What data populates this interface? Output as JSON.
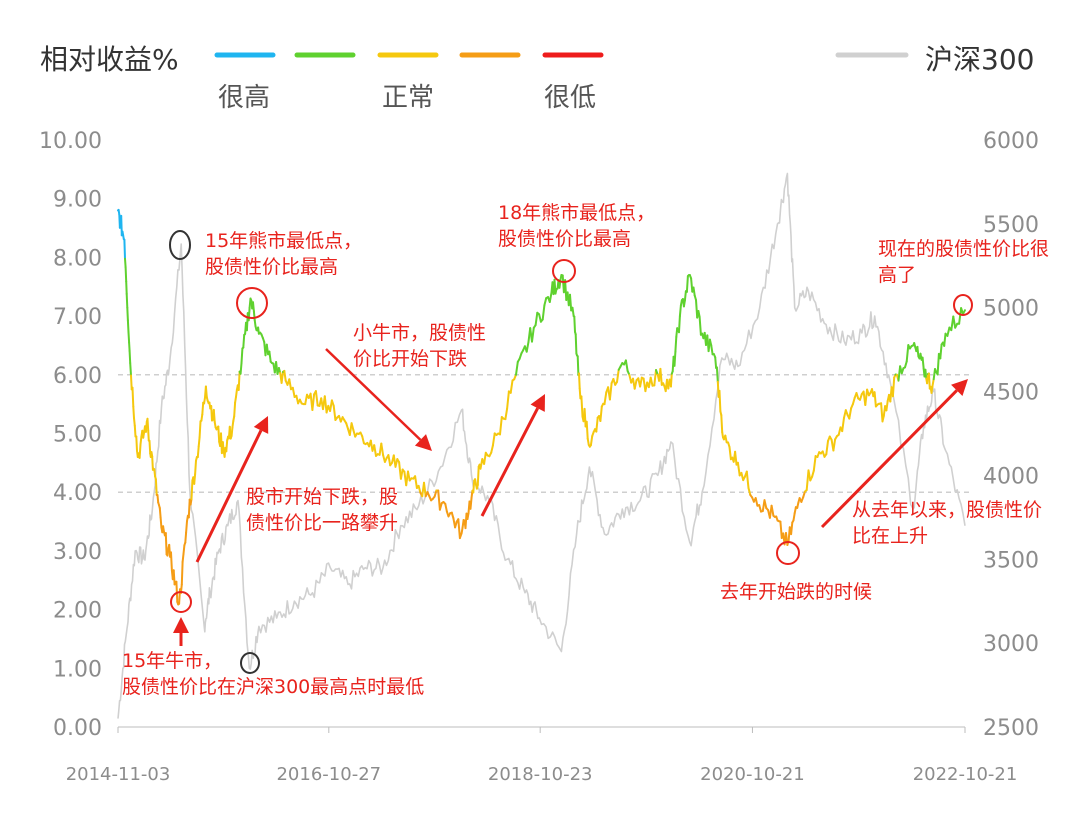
{
  "chart_data": {
    "type": "line",
    "legend": {
      "left_title": "相对收益%",
      "bands": [
        {
          "name": "很高",
          "color": "#1fb5f0"
        },
        {
          "name": "",
          "color": "#5fd12f"
        },
        {
          "name": "正常",
          "color": "#f5c80f"
        },
        {
          "name": "",
          "color": "#f59d16"
        },
        {
          "name": "很低",
          "color": "#ee1c1c"
        }
      ],
      "right_series": {
        "name": "沪深300",
        "color": "#d0d0d0"
      }
    },
    "y_left": {
      "range": [
        0,
        10
      ],
      "ticks": [
        "0.00",
        "1.00",
        "2.00",
        "3.00",
        "4.00",
        "5.00",
        "6.00",
        "7.00",
        "8.00",
        "9.00",
        "10.00"
      ]
    },
    "y_right": {
      "range": [
        2500,
        6000
      ],
      "ticks": [
        "2500",
        "3000",
        "3500",
        "4000",
        "4500",
        "5000",
        "5500",
        "6000"
      ]
    },
    "x_ticks": [
      "2014-11-03",
      "2016-10-27",
      "2018-10-23",
      "2020-10-21",
      "2022-10-21"
    ],
    "x_range": [
      "2014-11-03",
      "2022-10-21"
    ],
    "reference_lines": [
      4.0,
      6.0
    ],
    "relative_return": [
      [
        "2014-11-03",
        8.8
      ],
      [
        "2014-11-25",
        8.3
      ],
      [
        "2014-12-15",
        6.2
      ],
      [
        "2015-01-10",
        4.6
      ],
      [
        "2015-02-10",
        5.2
      ],
      [
        "2015-03-05",
        4.4
      ],
      [
        "2015-04-01",
        3.4
      ],
      [
        "2015-05-01",
        2.9
      ],
      [
        "2015-06-01",
        2.1
      ],
      [
        "2015-07-01",
        3.6
      ],
      [
        "2015-08-01",
        4.6
      ],
      [
        "2015-09-01",
        5.8
      ],
      [
        "2015-10-01",
        5.2
      ],
      [
        "2015-11-01",
        4.7
      ],
      [
        "2015-12-01",
        5.1
      ],
      [
        "2016-01-01",
        6.2
      ],
      [
        "2016-02-01",
        7.3
      ],
      [
        "2016-03-01",
        6.7
      ],
      [
        "2016-04-15",
        6.2
      ],
      [
        "2016-06-01",
        5.9
      ],
      [
        "2016-08-01",
        5.5
      ],
      [
        "2016-10-01",
        5.6
      ],
      [
        "2016-12-01",
        5.3
      ],
      [
        "2017-02-01",
        5.0
      ],
      [
        "2017-04-01",
        4.8
      ],
      [
        "2017-06-01",
        4.5
      ],
      [
        "2017-08-01",
        4.2
      ],
      [
        "2017-10-01",
        4.0
      ],
      [
        "2017-12-01",
        3.8
      ],
      [
        "2018-01-26",
        3.3
      ],
      [
        "2018-03-01",
        3.9
      ],
      [
        "2018-04-01",
        4.4
      ],
      [
        "2018-06-01",
        5.0
      ],
      [
        "2018-08-01",
        6.0
      ],
      [
        "2018-10-01",
        6.8
      ],
      [
        "2018-12-01",
        7.4
      ],
      [
        "2019-01-04",
        7.7
      ],
      [
        "2019-02-15",
        7.0
      ],
      [
        "2019-03-10",
        5.6
      ],
      [
        "2019-04-15",
        4.8
      ],
      [
        "2019-06-01",
        5.5
      ],
      [
        "2019-08-01",
        6.2
      ],
      [
        "2019-10-01",
        5.8
      ],
      [
        "2019-12-01",
        6.0
      ],
      [
        "2020-01-15",
        5.8
      ],
      [
        "2020-02-15",
        7.0
      ],
      [
        "2020-03-20",
        7.7
      ],
      [
        "2020-05-01",
        6.7
      ],
      [
        "2020-06-15",
        6.3
      ],
      [
        "2020-07-15",
        4.9
      ],
      [
        "2020-09-01",
        4.5
      ],
      [
        "2020-11-01",
        3.9
      ],
      [
        "2021-01-01",
        3.6
      ],
      [
        "2021-02-18",
        3.1
      ],
      [
        "2021-04-01",
        3.9
      ],
      [
        "2021-06-01",
        4.6
      ],
      [
        "2021-08-01",
        4.9
      ],
      [
        "2021-10-01",
        5.5
      ],
      [
        "2021-12-01",
        5.7
      ],
      [
        "2022-01-15",
        5.3
      ],
      [
        "2022-03-01",
        6.0
      ],
      [
        "2022-04-26",
        6.5
      ],
      [
        "2022-06-01",
        6.1
      ],
      [
        "2022-07-01",
        5.8
      ],
      [
        "2022-08-15",
        6.7
      ],
      [
        "2022-10-21",
        7.1
      ]
    ],
    "csi300": [
      [
        "2014-11-03",
        2550
      ],
      [
        "2014-12-01",
        3050
      ],
      [
        "2015-01-01",
        3550
      ],
      [
        "2015-02-01",
        3500
      ],
      [
        "2015-03-01",
        3800
      ],
      [
        "2015-04-01",
        4400
      ],
      [
        "2015-05-01",
        4700
      ],
      [
        "2015-06-08",
        5380
      ],
      [
        "2015-07-08",
        3900
      ],
      [
        "2015-08-26",
        3100
      ],
      [
        "2015-09-15",
        3300
      ],
      [
        "2015-10-15",
        3550
      ],
      [
        "2015-11-15",
        3700
      ],
      [
        "2015-12-20",
        3850
      ],
      [
        "2016-01-28",
        2850
      ],
      [
        "2016-03-01",
        3100
      ],
      [
        "2016-05-01",
        3150
      ],
      [
        "2016-07-01",
        3250
      ],
      [
        "2016-09-01",
        3300
      ],
      [
        "2016-11-01",
        3450
      ],
      [
        "2017-01-01",
        3350
      ],
      [
        "2017-03-01",
        3450
      ],
      [
        "2017-05-01",
        3450
      ],
      [
        "2017-07-01",
        3700
      ],
      [
        "2017-09-01",
        3820
      ],
      [
        "2017-11-15",
        4050
      ],
      [
        "2018-01-26",
        4390
      ],
      [
        "2018-03-01",
        4000
      ],
      [
        "2018-05-01",
        3850
      ],
      [
        "2018-07-01",
        3500
      ],
      [
        "2018-09-01",
        3300
      ],
      [
        "2018-10-20",
        3150
      ],
      [
        "2019-01-04",
        2950
      ],
      [
        "2019-02-25",
        3650
      ],
      [
        "2019-04-10",
        4050
      ],
      [
        "2019-06-01",
        3650
      ],
      [
        "2019-08-01",
        3800
      ],
      [
        "2019-10-01",
        3850
      ],
      [
        "2019-12-01",
        4000
      ],
      [
        "2020-01-15",
        4200
      ],
      [
        "2020-03-20",
        3600
      ],
      [
        "2020-05-01",
        3900
      ],
      [
        "2020-07-08",
        4700
      ],
      [
        "2020-09-01",
        4650
      ],
      [
        "2020-11-15",
        5000
      ],
      [
        "2021-01-15",
        5500
      ],
      [
        "2021-02-18",
        5800
      ],
      [
        "2021-03-15",
        5000
      ],
      [
        "2021-05-01",
        5100
      ],
      [
        "2021-07-01",
        4900
      ],
      [
        "2021-09-01",
        4800
      ],
      [
        "2021-11-01",
        4850
      ],
      [
        "2021-12-15",
        4950
      ],
      [
        "2022-02-01",
        4600
      ],
      [
        "2022-04-26",
        3800
      ],
      [
        "2022-06-01",
        4300
      ],
      [
        "2022-07-05",
        4500
      ],
      [
        "2022-08-15",
        4150
      ],
      [
        "2022-10-21",
        3700
      ]
    ],
    "annotations": [
      {
        "id": "bull15",
        "lines": [
          "15年牛市，",
          "股债性价比在沪深300最高点时最低"
        ]
      },
      {
        "id": "bear15",
        "lines": [
          "15年熊市最低点，",
          "股债性价比最高"
        ]
      },
      {
        "id": "fall16",
        "lines": [
          "股市开始下跌，股",
          "债性价比一路攀升"
        ]
      },
      {
        "id": "minibull",
        "lines": [
          "小牛市，股债性",
          "价比开始下跌"
        ]
      },
      {
        "id": "bear18",
        "lines": [
          "18年熊市最低点，",
          "股债性价比最高"
        ]
      },
      {
        "id": "drop21",
        "lines": [
          "去年开始跌的时候"
        ]
      },
      {
        "id": "since21",
        "lines": [
          "从去年以来，股债性价",
          "比在上升"
        ]
      },
      {
        "id": "now",
        "lines": [
          "现在的股债性价比很",
          "高了"
        ]
      }
    ]
  }
}
